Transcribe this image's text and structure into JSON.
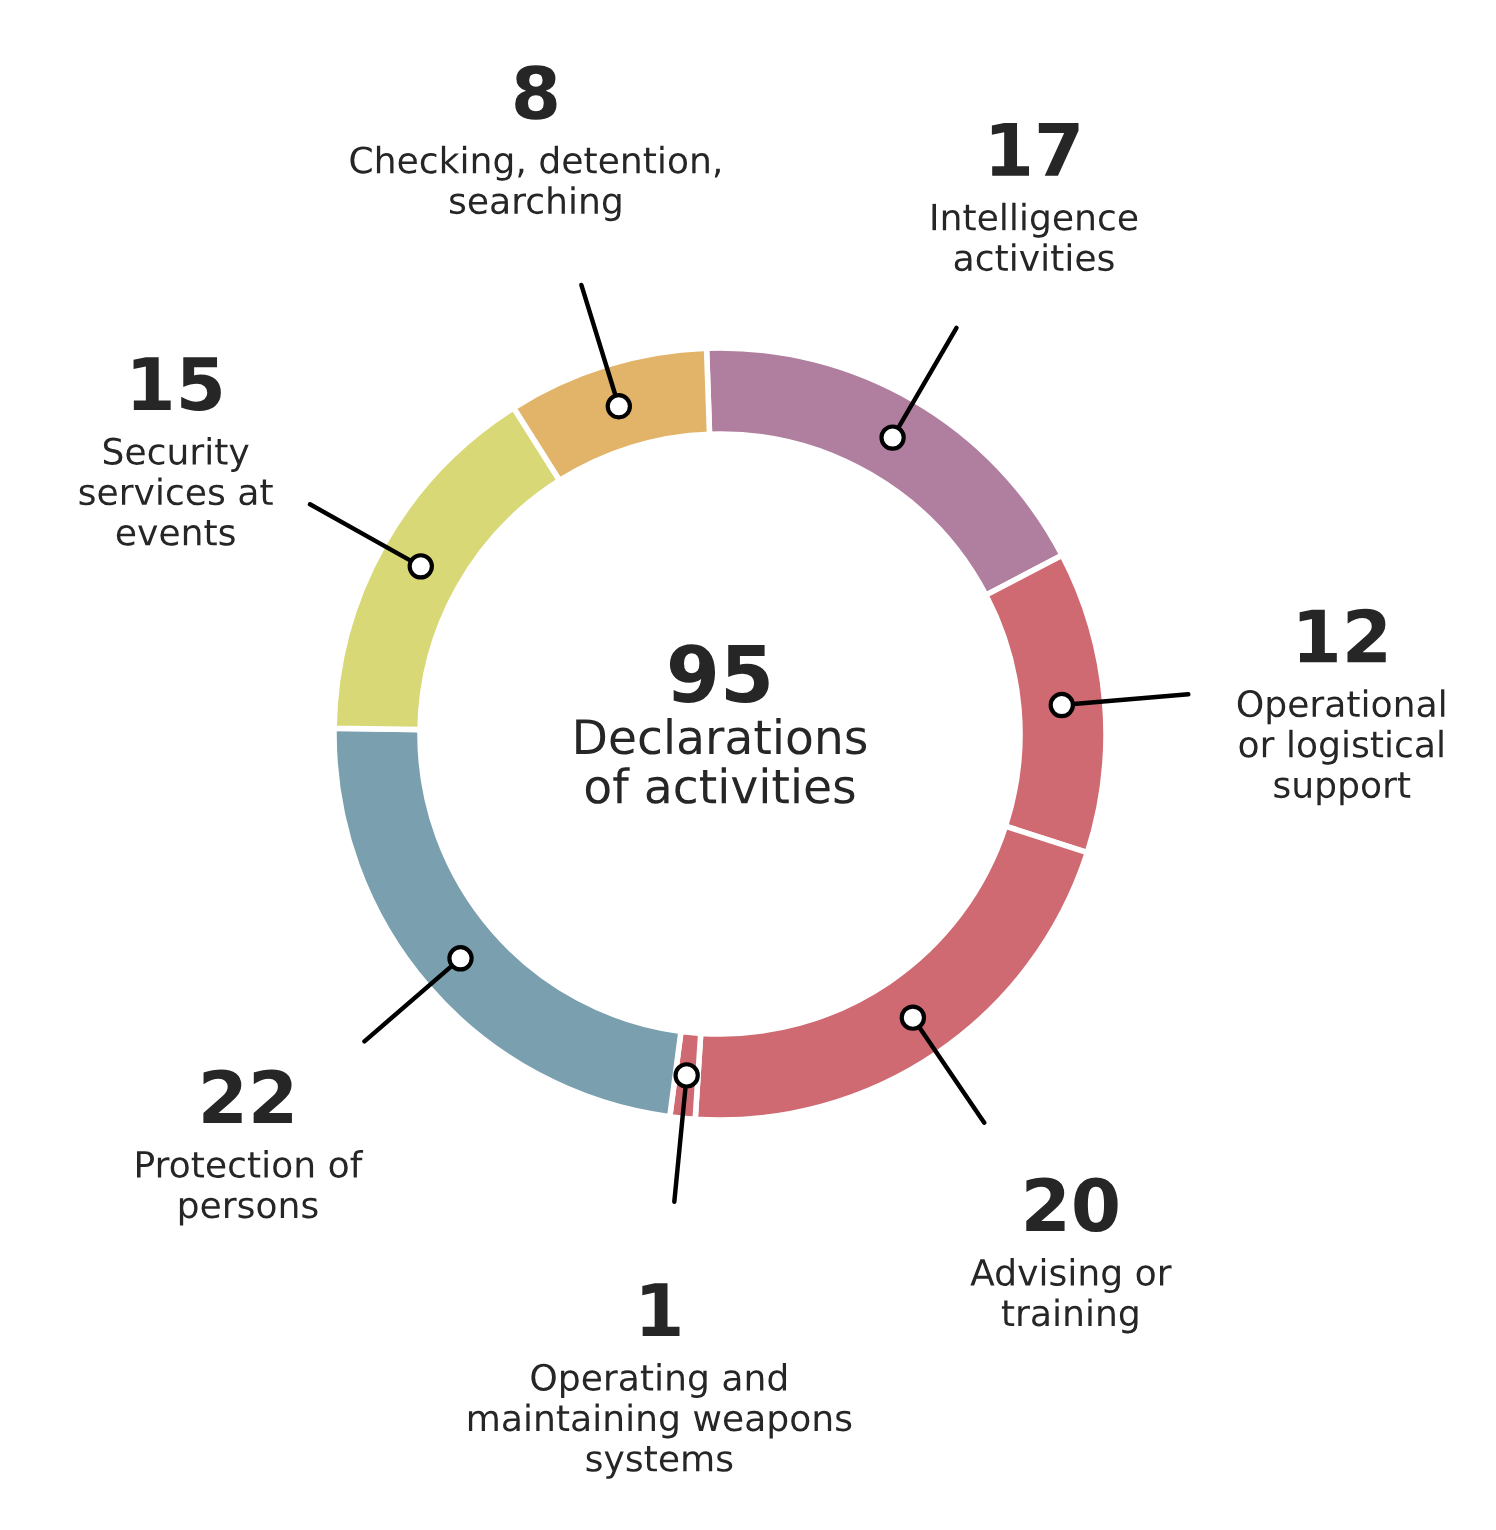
{
  "chart_data": {
    "type": "donut",
    "categories": [
      "Intelligence\nactivities",
      "Operational\nor logistical\nsupport",
      "Advising or\ntraining",
      "Operating and\nmaintaining weapons\nsystems",
      "Protection of\npersons",
      "Security\nservices at\nevents",
      "Checking, detention,\nsearching"
    ],
    "values": [
      17,
      12,
      20,
      1,
      22,
      15,
      8
    ],
    "colors": [
      "#b07fa0",
      "#d06a72",
      "#d06a72",
      "#d06a72",
      "#7a9fae",
      "#d9d877",
      "#e2b46a"
    ],
    "data_labels": true,
    "annotations": [
      "95",
      "Declarations\nof activities"
    ]
  }
}
